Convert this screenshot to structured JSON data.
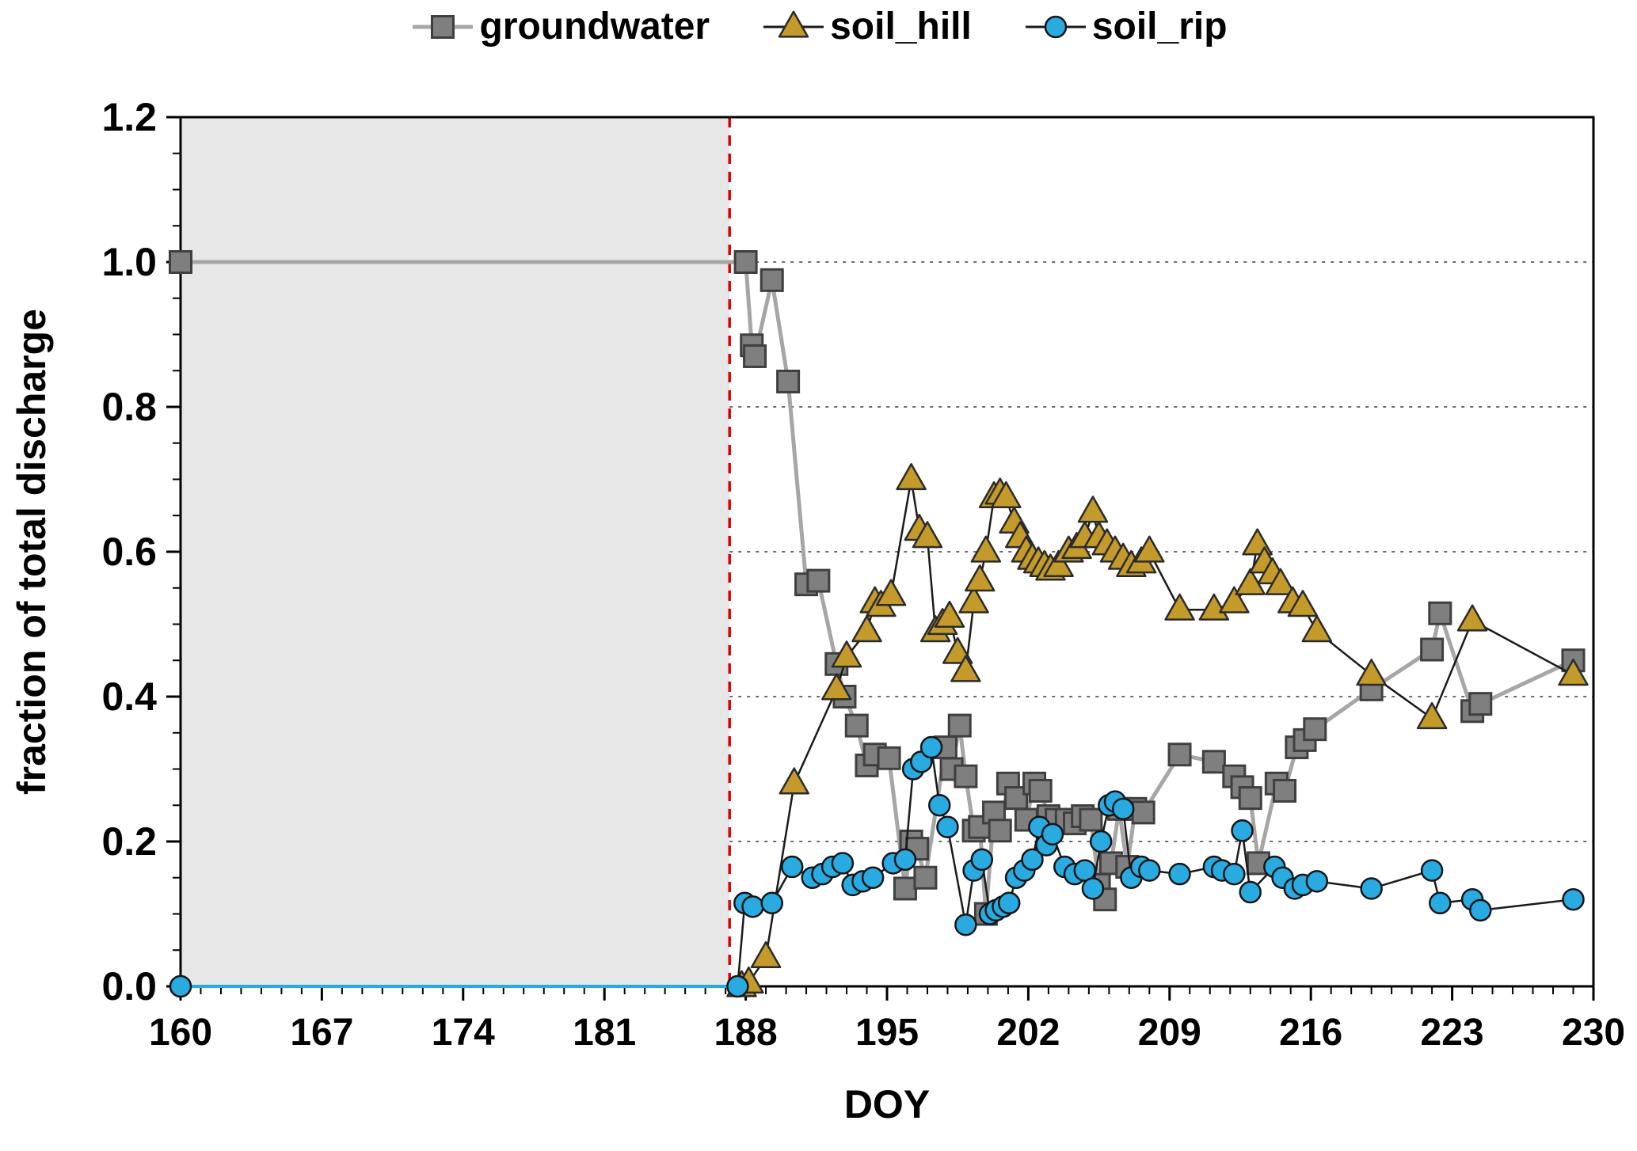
{
  "figure": {
    "background": "#FFFFFF"
  },
  "chart_data": {
    "type": "line",
    "title": "",
    "xlabel": "DOY",
    "ylabel": "fraction of total discharge",
    "xlim": [
      160,
      230
    ],
    "ylim": [
      0,
      1.2
    ],
    "xticks": [
      160,
      167,
      174,
      181,
      188,
      195,
      202,
      209,
      216,
      223,
      230
    ],
    "x_minor_step": 1,
    "yticks": [
      0,
      0.2,
      0.4,
      0.6,
      0.8,
      1.0,
      1.2
    ],
    "ytick_labels": [
      "0.0",
      "0.2",
      "0.4",
      "0.6",
      "0.8",
      "1.0",
      "1.2"
    ],
    "y_minor_step": 0.05,
    "grid_y": [
      0.2,
      0.4,
      0.6,
      0.8,
      1.0
    ],
    "grid_color": "#3C3C3C",
    "frame_color": "#000000",
    "shaded_region": {
      "from": 160,
      "to": 187.2,
      "color": "#E7E7E7"
    },
    "event_line": {
      "x": 187.2,
      "color": "#E00000"
    },
    "legend_position": "top-center",
    "series": [
      {
        "name": "groundwater",
        "line": {
          "color": "#A6A6A6",
          "width": 5
        },
        "marker": {
          "shape": "square",
          "size": 27,
          "fill": "#7F7F7F",
          "edge": "#3F3F3F",
          "edge_width": 3
        },
        "points": [
          [
            160,
            1.0
          ],
          [
            188,
            1.0
          ],
          [
            188.3,
            0.885
          ],
          [
            188.45,
            0.87
          ],
          [
            189.3,
            0.975
          ],
          [
            190.1,
            0.835
          ],
          [
            191.0,
            0.555
          ],
          [
            191.6,
            0.56
          ],
          [
            192.5,
            0.445
          ],
          [
            192.9,
            0.4
          ],
          [
            193.5,
            0.36
          ],
          [
            194.0,
            0.305
          ],
          [
            194.4,
            0.32
          ],
          [
            195.1,
            0.315
          ],
          [
            195.9,
            0.135
          ],
          [
            196.2,
            0.2
          ],
          [
            196.5,
            0.19
          ],
          [
            196.9,
            0.15
          ],
          [
            197.9,
            0.33
          ],
          [
            198.2,
            0.3
          ],
          [
            198.6,
            0.36
          ],
          [
            198.9,
            0.29
          ],
          [
            199.3,
            0.215
          ],
          [
            199.6,
            0.22
          ],
          [
            199.9,
            0.1
          ],
          [
            200.3,
            0.24
          ],
          [
            200.6,
            0.215
          ],
          [
            201.0,
            0.28
          ],
          [
            201.4,
            0.26
          ],
          [
            201.9,
            0.23
          ],
          [
            202.3,
            0.28
          ],
          [
            202.6,
            0.27
          ],
          [
            203.0,
            0.235
          ],
          [
            203.4,
            0.23
          ],
          [
            203.9,
            0.23
          ],
          [
            204.3,
            0.225
          ],
          [
            204.7,
            0.235
          ],
          [
            205.1,
            0.23
          ],
          [
            205.5,
            0.14
          ],
          [
            205.8,
            0.12
          ],
          [
            206.1,
            0.17
          ],
          [
            206.5,
            0.245
          ],
          [
            206.9,
            0.165
          ],
          [
            207.3,
            0.245
          ],
          [
            207.7,
            0.24
          ],
          [
            209.5,
            0.32
          ],
          [
            211.2,
            0.31
          ],
          [
            212.2,
            0.29
          ],
          [
            212.6,
            0.275
          ],
          [
            213.0,
            0.26
          ],
          [
            213.4,
            0.17
          ],
          [
            214.3,
            0.28
          ],
          [
            214.7,
            0.27
          ],
          [
            215.3,
            0.33
          ],
          [
            215.7,
            0.34
          ],
          [
            216.2,
            0.355
          ],
          [
            219.0,
            0.41
          ],
          [
            222.0,
            0.465
          ],
          [
            222.4,
            0.515
          ],
          [
            224.0,
            0.38
          ],
          [
            224.4,
            0.39
          ],
          [
            229.0,
            0.45
          ]
        ]
      },
      {
        "name": "soil_hill",
        "line": {
          "color": "#1A1A1A",
          "width": 2.5
        },
        "marker": {
          "shape": "triangle",
          "size": 31,
          "fill": "#C49A2B",
          "edge": "#2B2B2B",
          "edge_width": 2.5
        },
        "points": [
          [
            187.8,
            0.0
          ],
          [
            188.15,
            0.005
          ],
          [
            189.0,
            0.04
          ],
          [
            190.4,
            0.28
          ],
          [
            192.5,
            0.41
          ],
          [
            193.0,
            0.455
          ],
          [
            194.0,
            0.49
          ],
          [
            194.4,
            0.53
          ],
          [
            194.7,
            0.525
          ],
          [
            195.2,
            0.54
          ],
          [
            196.2,
            0.7
          ],
          [
            196.6,
            0.63
          ],
          [
            197.0,
            0.62
          ],
          [
            197.4,
            0.49
          ],
          [
            197.75,
            0.5
          ],
          [
            198.1,
            0.51
          ],
          [
            198.5,
            0.46
          ],
          [
            198.9,
            0.435
          ],
          [
            199.3,
            0.53
          ],
          [
            199.6,
            0.56
          ],
          [
            199.9,
            0.6
          ],
          [
            200.3,
            0.675
          ],
          [
            200.6,
            0.68
          ],
          [
            200.9,
            0.675
          ],
          [
            201.3,
            0.64
          ],
          [
            201.6,
            0.62
          ],
          [
            201.9,
            0.6
          ],
          [
            202.2,
            0.59
          ],
          [
            202.5,
            0.585
          ],
          [
            202.8,
            0.58
          ],
          [
            203.1,
            0.575
          ],
          [
            203.5,
            0.58
          ],
          [
            204.0,
            0.6
          ],
          [
            204.4,
            0.605
          ],
          [
            204.8,
            0.62
          ],
          [
            205.2,
            0.655
          ],
          [
            205.5,
            0.62
          ],
          [
            205.9,
            0.61
          ],
          [
            206.3,
            0.6
          ],
          [
            206.7,
            0.59
          ],
          [
            207.1,
            0.58
          ],
          [
            207.6,
            0.585
          ],
          [
            208.0,
            0.6
          ],
          [
            209.5,
            0.52
          ],
          [
            211.2,
            0.52
          ],
          [
            212.2,
            0.53
          ],
          [
            213.0,
            0.555
          ],
          [
            213.35,
            0.61
          ],
          [
            213.7,
            0.585
          ],
          [
            214.1,
            0.57
          ],
          [
            214.5,
            0.555
          ],
          [
            215.1,
            0.53
          ],
          [
            215.6,
            0.525
          ],
          [
            216.3,
            0.49
          ],
          [
            219.0,
            0.43
          ],
          [
            222.0,
            0.37
          ],
          [
            224.0,
            0.505
          ],
          [
            229.0,
            0.43
          ]
        ]
      },
      {
        "name": "soil_rip",
        "line": {
          "color": "#1A1A1A",
          "width": 2.5
        },
        "segments": [
          {
            "start": 0,
            "end": 1,
            "color": "#29ABE2",
            "width": 4
          },
          {
            "start": 1,
            "end": 60,
            "color": "#1A1A1A",
            "width": 2.5
          }
        ],
        "marker": {
          "shape": "circle",
          "size": 26,
          "fill": "#29ABE2",
          "edge": "#161616",
          "edge_width": 2.5
        },
        "points": [
          [
            160,
            0.0
          ],
          [
            187.6,
            0.0
          ],
          [
            187.95,
            0.115
          ],
          [
            188.35,
            0.11
          ],
          [
            189.3,
            0.115
          ],
          [
            190.3,
            0.165
          ],
          [
            191.3,
            0.15
          ],
          [
            191.8,
            0.155
          ],
          [
            192.3,
            0.165
          ],
          [
            192.8,
            0.17
          ],
          [
            193.3,
            0.14
          ],
          [
            193.8,
            0.145
          ],
          [
            194.3,
            0.15
          ],
          [
            195.3,
            0.17
          ],
          [
            195.9,
            0.175
          ],
          [
            196.3,
            0.3
          ],
          [
            196.7,
            0.31
          ],
          [
            197.2,
            0.33
          ],
          [
            197.6,
            0.25
          ],
          [
            198.0,
            0.22
          ],
          [
            198.9,
            0.085
          ],
          [
            199.3,
            0.16
          ],
          [
            199.7,
            0.175
          ],
          [
            200.1,
            0.1
          ],
          [
            200.4,
            0.105
          ],
          [
            200.75,
            0.11
          ],
          [
            201.05,
            0.115
          ],
          [
            201.4,
            0.15
          ],
          [
            201.8,
            0.16
          ],
          [
            202.2,
            0.175
          ],
          [
            202.55,
            0.22
          ],
          [
            202.9,
            0.195
          ],
          [
            203.2,
            0.21
          ],
          [
            203.8,
            0.165
          ],
          [
            204.3,
            0.155
          ],
          [
            204.8,
            0.16
          ],
          [
            205.2,
            0.135
          ],
          [
            205.6,
            0.2
          ],
          [
            206.0,
            0.25
          ],
          [
            206.3,
            0.255
          ],
          [
            206.7,
            0.245
          ],
          [
            207.1,
            0.15
          ],
          [
            207.6,
            0.165
          ],
          [
            208.0,
            0.16
          ],
          [
            209.5,
            0.155
          ],
          [
            211.2,
            0.165
          ],
          [
            211.6,
            0.16
          ],
          [
            212.2,
            0.155
          ],
          [
            212.6,
            0.215
          ],
          [
            213.0,
            0.13
          ],
          [
            214.2,
            0.165
          ],
          [
            214.6,
            0.15
          ],
          [
            215.2,
            0.135
          ],
          [
            215.6,
            0.14
          ],
          [
            216.3,
            0.145
          ],
          [
            219.0,
            0.135
          ],
          [
            222.0,
            0.16
          ],
          [
            222.4,
            0.115
          ],
          [
            224.0,
            0.12
          ],
          [
            224.4,
            0.105
          ],
          [
            229.0,
            0.12
          ]
        ]
      }
    ]
  }
}
